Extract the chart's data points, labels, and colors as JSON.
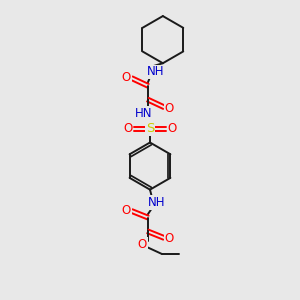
{
  "background_color": "#e8e8e8",
  "bond_color": "#1a1a1a",
  "oxygen_color": "#ff0000",
  "nitrogen_color": "#0000cc",
  "sulfur_color": "#cccc00",
  "lw": 1.4,
  "fs": 8.5,
  "figsize": [
    3.0,
    3.0
  ],
  "dpi": 100,
  "xlim": [
    75,
    225
  ],
  "ylim": [
    15,
    295
  ]
}
